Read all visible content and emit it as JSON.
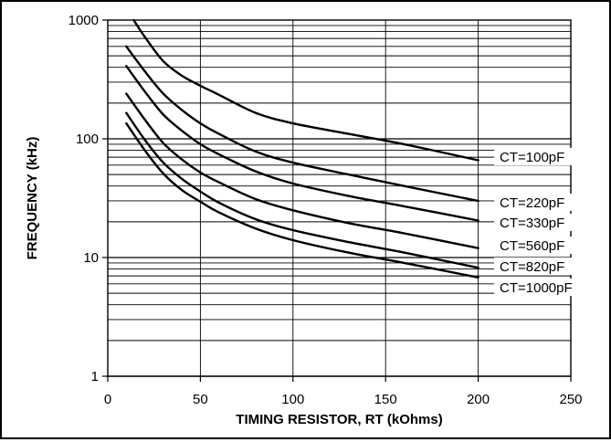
{
  "chart_data": {
    "type": "line",
    "title": "",
    "xlabel": "TIMING RESISTOR, RT (kOhms)",
    "ylabel": "FREQUENCY (kHz)",
    "xlim": [
      0,
      250
    ],
    "ylim": [
      1,
      1000
    ],
    "y_scale": "log",
    "grid": true,
    "x_ticks": [
      "0",
      "50",
      "100",
      "150",
      "200",
      "250"
    ],
    "y_ticks": [
      "1",
      "10",
      "100",
      "1000"
    ],
    "series": [
      {
        "name": "CT=100pF",
        "points": [
          [
            14,
            1000
          ],
          [
            20,
            720
          ],
          [
            30,
            450
          ],
          [
            40,
            340
          ],
          [
            50,
            280
          ],
          [
            60,
            235
          ],
          [
            80,
            165
          ],
          [
            100,
            135
          ],
          [
            130,
            110
          ],
          [
            160,
            90
          ],
          [
            200,
            66
          ]
        ]
      },
      {
        "name": "CT=220pF",
        "points": [
          [
            10,
            600
          ],
          [
            20,
            370
          ],
          [
            30,
            240
          ],
          [
            40,
            175
          ],
          [
            50,
            135
          ],
          [
            60,
            110
          ],
          [
            80,
            78
          ],
          [
            100,
            63
          ],
          [
            130,
            50
          ],
          [
            160,
            40
          ],
          [
            200,
            30
          ]
        ]
      },
      {
        "name": "CT=330pF",
        "points": [
          [
            10,
            410
          ],
          [
            20,
            250
          ],
          [
            30,
            160
          ],
          [
            40,
            117
          ],
          [
            50,
            90
          ],
          [
            60,
            74
          ],
          [
            80,
            53
          ],
          [
            100,
            42
          ],
          [
            130,
            33
          ],
          [
            160,
            27
          ],
          [
            200,
            20.5
          ]
        ]
      },
      {
        "name": "CT=560pF",
        "points": [
          [
            10,
            240
          ],
          [
            20,
            145
          ],
          [
            30,
            92
          ],
          [
            40,
            67
          ],
          [
            50,
            52
          ],
          [
            60,
            43
          ],
          [
            80,
            31
          ],
          [
            100,
            25
          ],
          [
            130,
            19.5
          ],
          [
            160,
            16
          ],
          [
            200,
            12
          ]
        ]
      },
      {
        "name": "CT=820pF",
        "points": [
          [
            10,
            165
          ],
          [
            20,
            98
          ],
          [
            30,
            63
          ],
          [
            40,
            46
          ],
          [
            50,
            36
          ],
          [
            60,
            29
          ],
          [
            80,
            21
          ],
          [
            100,
            17
          ],
          [
            130,
            13.5
          ],
          [
            160,
            11
          ],
          [
            200,
            8.2
          ]
        ]
      },
      {
        "name": "CT=1000pF",
        "points": [
          [
            10,
            135
          ],
          [
            20,
            80
          ],
          [
            30,
            51
          ],
          [
            40,
            37
          ],
          [
            50,
            29.5
          ],
          [
            60,
            24
          ],
          [
            80,
            17.5
          ],
          [
            100,
            14
          ],
          [
            130,
            11
          ],
          [
            160,
            9
          ],
          [
            200,
            6.8
          ]
        ]
      }
    ]
  }
}
